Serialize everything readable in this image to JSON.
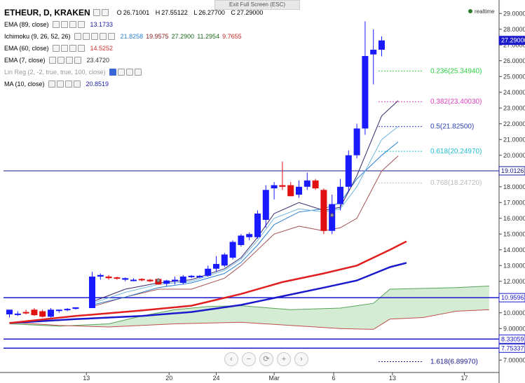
{
  "header": {
    "tooltip": "Exit Full Screen (ESC)",
    "realtime": "realtime",
    "symbol": "ETHEUR, D, KRAKEN",
    "ohlc": {
      "o_label": "O",
      "o": "26.71001",
      "h_label": "H",
      "h": "27.55122",
      "l_label": "L",
      "l": "26.27700",
      "c_label": "C",
      "c": "27.29000"
    }
  },
  "indicators": [
    {
      "name": "EMA (89, close)",
      "value": "13.1733",
      "color": "#1a1aa8"
    },
    {
      "name": "Ichimoku (9, 26, 52, 26)",
      "values": [
        {
          "v": "21.8258",
          "color": "#2a7fd4"
        },
        {
          "v": "19.9575",
          "color": "#8b1a1a"
        },
        {
          "v": "27.2900",
          "color": "#1f6b1f"
        },
        {
          "v": "11.2954",
          "color": "#1f6b1f"
        },
        {
          "v": "9.7655",
          "color": "#c62828"
        }
      ]
    },
    {
      "name": "EMA (60, close)",
      "value": "14.5252",
      "color": "#d32f2f"
    },
    {
      "name": "EMA (7, close)",
      "value": "23.4720",
      "color": "#333333"
    },
    {
      "name": "Lin Reg (2, -2, true, true, 100, close)",
      "value": "",
      "color": "#999999"
    },
    {
      "name": "MA (10, close)",
      "value": "20.8519",
      "color": "#1a1aa8"
    }
  ],
  "nav_buttons": [
    "‹",
    "−",
    "⟳",
    "+",
    "›"
  ],
  "chart_data": {
    "type": "candlestick",
    "y_axis": {
      "min": 6.3,
      "max": 29.5,
      "ticks": [
        7,
        8,
        9,
        10,
        11,
        12,
        13,
        14,
        15,
        16,
        17,
        18,
        19,
        20,
        21,
        22,
        23,
        24,
        25,
        26,
        27,
        28,
        29
      ],
      "tick_format": "{v}.000000"
    },
    "x_ticks": [
      {
        "label": "13",
        "i": 9.3
      },
      {
        "label": "20",
        "i": 19.3
      },
      {
        "label": "24",
        "i": 25.0
      },
      {
        "label": "Mar",
        "i": 32.0
      },
      {
        "label": "6",
        "i": 39.2
      },
      {
        "label": "13",
        "i": 46.3
      },
      {
        "label": "17",
        "i": 55.0
      }
    ],
    "price_labels": [
      {
        "value": 27.29,
        "text": "27.29000",
        "color": "#1a1acc",
        "kind": "current"
      },
      {
        "value": 19.01261,
        "text": "19.01261",
        "color": "#1a1a8a",
        "kind": "line"
      },
      {
        "value": 10.95963,
        "text": "10.95963",
        "color": "#1a1acc",
        "kind": "line"
      },
      {
        "value": 8.33059,
        "text": "8.33059",
        "color": "#1a1acc",
        "kind": "line"
      },
      {
        "value": 7.75337,
        "text": "7.75337",
        "color": "#1a1acc",
        "kind": "line"
      }
    ],
    "fib_levels": [
      {
        "ratio": "0.236",
        "price": "25.34940",
        "value": 25.3494,
        "color": "#2ecc40"
      },
      {
        "ratio": "0.382",
        "price": "23.40030",
        "value": 23.4003,
        "color": "#e040c0"
      },
      {
        "ratio": "0.5",
        "price": "21.82500",
        "value": 21.825,
        "color": "#2a3fb0"
      },
      {
        "ratio": "0.618",
        "price": "20.24970",
        "value": 20.2497,
        "color": "#20c0d0"
      },
      {
        "ratio": "0.768",
        "price": "18.24720",
        "value": 18.2472,
        "color": "#bbbbbb"
      },
      {
        "ratio": "1.618",
        "price": "6.89970",
        "value": 6.8997,
        "color": "#1a1a8a"
      }
    ],
    "candles": [
      {
        "i": 0,
        "o": 9.9,
        "h": 10.1,
        "l": 9.7,
        "c": 10.2
      },
      {
        "i": 1,
        "o": 9.9,
        "h": 10.1,
        "l": 9.8,
        "c": 9.95
      },
      {
        "i": 2,
        "o": 10.05,
        "h": 10.2,
        "l": 9.9,
        "c": 10.0
      },
      {
        "i": 3,
        "o": 10.2,
        "h": 10.3,
        "l": 9.8,
        "c": 9.85
      },
      {
        "i": 4,
        "o": 10.1,
        "h": 10.2,
        "l": 9.7,
        "c": 9.75
      },
      {
        "i": 5,
        "o": 9.75,
        "h": 10.3,
        "l": 9.7,
        "c": 10.2
      },
      {
        "i": 6,
        "o": 10.15,
        "h": 10.2,
        "l": 10.0,
        "c": 10.2
      },
      {
        "i": 7,
        "o": 10.2,
        "h": 10.3,
        "l": 10.1,
        "c": 10.25
      },
      {
        "i": 8,
        "o": 10.25,
        "h": 10.3,
        "l": 10.2,
        "c": 10.35
      },
      {
        "i": 10,
        "o": 10.3,
        "h": 12.6,
        "l": 10.3,
        "c": 12.3
      },
      {
        "i": 11,
        "o": 12.3,
        "h": 12.5,
        "l": 12.1,
        "c": 12.4
      },
      {
        "i": 12,
        "o": 12.3,
        "h": 12.4,
        "l": 12.1,
        "c": 12.2
      },
      {
        "i": 13,
        "o": 12.25,
        "h": 12.3,
        "l": 12.1,
        "c": 12.2
      },
      {
        "i": 14,
        "o": 12.1,
        "h": 12.25,
        "l": 12.0,
        "c": 12.2
      },
      {
        "i": 15,
        "o": 12.1,
        "h": 12.2,
        "l": 12.0,
        "c": 12.1
      },
      {
        "i": 16,
        "o": 12.15,
        "h": 12.2,
        "l": 12.0,
        "c": 12.1
      },
      {
        "i": 17,
        "o": 12.1,
        "h": 12.15,
        "l": 11.95,
        "c": 12.0
      },
      {
        "i": 18,
        "o": 12.15,
        "h": 12.2,
        "l": 11.8,
        "c": 11.8
      },
      {
        "i": 19,
        "o": 11.85,
        "h": 12.1,
        "l": 11.7,
        "c": 12.05
      },
      {
        "i": 20,
        "o": 12.0,
        "h": 12.3,
        "l": 11.8,
        "c": 12.1
      },
      {
        "i": 21,
        "o": 11.9,
        "h": 12.4,
        "l": 11.8,
        "c": 12.3
      },
      {
        "i": 22,
        "o": 12.3,
        "h": 12.4,
        "l": 12.2,
        "c": 12.35
      },
      {
        "i": 23,
        "o": 12.25,
        "h": 12.4,
        "l": 12.2,
        "c": 12.35
      },
      {
        "i": 24,
        "o": 12.35,
        "h": 13.0,
        "l": 12.3,
        "c": 12.8
      },
      {
        "i": 25,
        "o": 12.8,
        "h": 13.6,
        "l": 12.6,
        "c": 13.1
      },
      {
        "i": 26,
        "o": 13.0,
        "h": 13.8,
        "l": 12.9,
        "c": 13.7
      },
      {
        "i": 27,
        "o": 13.5,
        "h": 14.6,
        "l": 13.4,
        "c": 14.5
      },
      {
        "i": 28,
        "o": 14.3,
        "h": 15.0,
        "l": 14.2,
        "c": 14.9
      },
      {
        "i": 29,
        "o": 14.8,
        "h": 15.1,
        "l": 14.6,
        "c": 15.0
      },
      {
        "i": 30,
        "o": 14.8,
        "h": 16.5,
        "l": 14.7,
        "c": 16.3
      },
      {
        "i": 31,
        "o": 15.9,
        "h": 18.1,
        "l": 15.4,
        "c": 17.8
      },
      {
        "i": 32,
        "o": 17.9,
        "h": 18.3,
        "l": 17.2,
        "c": 18.1
      },
      {
        "i": 33,
        "o": 18.1,
        "h": 19.6,
        "l": 17.8,
        "c": 18.0
      },
      {
        "i": 34,
        "o": 18.1,
        "h": 18.3,
        "l": 17.4,
        "c": 17.4
      },
      {
        "i": 35,
        "o": 17.5,
        "h": 18.4,
        "l": 17.3,
        "c": 18.0
      },
      {
        "i": 36,
        "o": 18.0,
        "h": 18.9,
        "l": 17.8,
        "c": 18.4
      },
      {
        "i": 37,
        "o": 18.4,
        "h": 18.5,
        "l": 17.8,
        "c": 17.9
      },
      {
        "i": 38,
        "o": 17.8,
        "h": 17.9,
        "l": 15.0,
        "c": 15.2
      },
      {
        "i": 39,
        "o": 15.2,
        "h": 17.5,
        "l": 15.0,
        "c": 16.9
      },
      {
        "i": 40,
        "o": 16.9,
        "h": 18.5,
        "l": 16.5,
        "c": 18.0
      },
      {
        "i": 41,
        "o": 18.0,
        "h": 20.3,
        "l": 17.7,
        "c": 20.0
      },
      {
        "i": 42,
        "o": 20.0,
        "h": 22.0,
        "l": 19.8,
        "c": 21.7
      },
      {
        "i": 43,
        "o": 21.7,
        "h": 28.5,
        "l": 21.3,
        "c": 26.3
      },
      {
        "i": 44,
        "o": 26.4,
        "h": 28.0,
        "l": 24.5,
        "c": 26.7
      },
      {
        "i": 45,
        "o": 26.7,
        "h": 27.55,
        "l": 26.28,
        "c": 27.29
      }
    ],
    "ema89": [
      [
        0,
        9.35
      ],
      [
        8,
        9.6
      ],
      [
        16,
        9.8
      ],
      [
        22,
        10.05
      ],
      [
        28,
        10.5
      ],
      [
        33,
        11.05
      ],
      [
        38,
        11.6
      ],
      [
        42,
        12.05
      ],
      [
        46,
        12.9
      ],
      [
        48,
        13.17
      ]
    ],
    "ema60": [
      [
        0,
        9.35
      ],
      [
        8,
        9.8
      ],
      [
        16,
        10.15
      ],
      [
        22,
        10.45
      ],
      [
        28,
        11.2
      ],
      [
        33,
        11.95
      ],
      [
        38,
        12.5
      ],
      [
        42,
        13.0
      ],
      [
        46,
        14.0
      ],
      [
        48,
        14.53
      ]
    ],
    "ema7": [
      [
        10,
        10.7
      ],
      [
        14,
        11.5
      ],
      [
        18,
        11.9
      ],
      [
        22,
        12.1
      ],
      [
        26,
        12.8
      ],
      [
        28,
        13.5
      ],
      [
        30,
        14.8
      ],
      [
        32,
        16.3
      ],
      [
        35,
        17.0
      ],
      [
        38,
        16.5
      ],
      [
        40,
        16.7
      ],
      [
        42,
        18.7
      ],
      [
        45,
        22.5
      ],
      [
        47,
        23.47
      ]
    ],
    "ma10": [
      [
        10,
        10.5
      ],
      [
        14,
        11.0
      ],
      [
        18,
        11.6
      ],
      [
        22,
        11.9
      ],
      [
        26,
        12.5
      ],
      [
        28,
        13.2
      ],
      [
        30,
        14.3
      ],
      [
        32,
        15.6
      ],
      [
        35,
        16.4
      ],
      [
        38,
        16.6
      ],
      [
        40,
        17.0
      ],
      [
        42,
        18.5
      ],
      [
        45,
        20.0
      ],
      [
        47,
        20.85
      ]
    ],
    "kijun": [
      [
        10,
        10.4
      ],
      [
        14,
        11.0
      ],
      [
        18,
        11.5
      ],
      [
        22,
        11.5
      ],
      [
        26,
        12.2
      ],
      [
        28,
        13.0
      ],
      [
        30,
        14.0
      ],
      [
        32,
        15.0
      ],
      [
        35,
        15.5
      ],
      [
        38,
        15.2
      ],
      [
        40,
        15.4
      ],
      [
        42,
        16.0
      ],
      [
        45,
        19.0
      ],
      [
        47,
        19.96
      ]
    ],
    "tenkan": [
      [
        10,
        10.6
      ],
      [
        14,
        11.3
      ],
      [
        18,
        11.8
      ],
      [
        22,
        12.0
      ],
      [
        26,
        12.7
      ],
      [
        28,
        13.4
      ],
      [
        30,
        14.6
      ],
      [
        32,
        16.0
      ],
      [
        35,
        16.6
      ],
      [
        38,
        16.4
      ],
      [
        40,
        16.6
      ],
      [
        42,
        18.0
      ],
      [
        45,
        21.0
      ],
      [
        47,
        21.83
      ]
    ],
    "cloud_a": [
      [
        0,
        9.3
      ],
      [
        6,
        9.15
      ],
      [
        12,
        9.3
      ],
      [
        16,
        9.8
      ],
      [
        20,
        10.2
      ],
      [
        24,
        10.4
      ],
      [
        28,
        10.45
      ],
      [
        34,
        10.2
      ],
      [
        40,
        10.3
      ],
      [
        44,
        10.6
      ],
      [
        46,
        11.5
      ],
      [
        50,
        11.55
      ],
      [
        54,
        11.6
      ],
      [
        58,
        11.7
      ]
    ],
    "cloud_b": [
      [
        0,
        9.4
      ],
      [
        6,
        9.2
      ],
      [
        12,
        9.1
      ],
      [
        16,
        9.2
      ],
      [
        20,
        9.3
      ],
      [
        24,
        9.35
      ],
      [
        28,
        9.4
      ],
      [
        34,
        9.2
      ],
      [
        40,
        9.0
      ],
      [
        44,
        8.95
      ],
      [
        46,
        9.6
      ],
      [
        50,
        9.7
      ],
      [
        54,
        10.1
      ],
      [
        58,
        10.2
      ]
    ],
    "chikou_points": [
      [
        18,
        12.05
      ],
      [
        39,
        16.2
      ]
    ]
  }
}
